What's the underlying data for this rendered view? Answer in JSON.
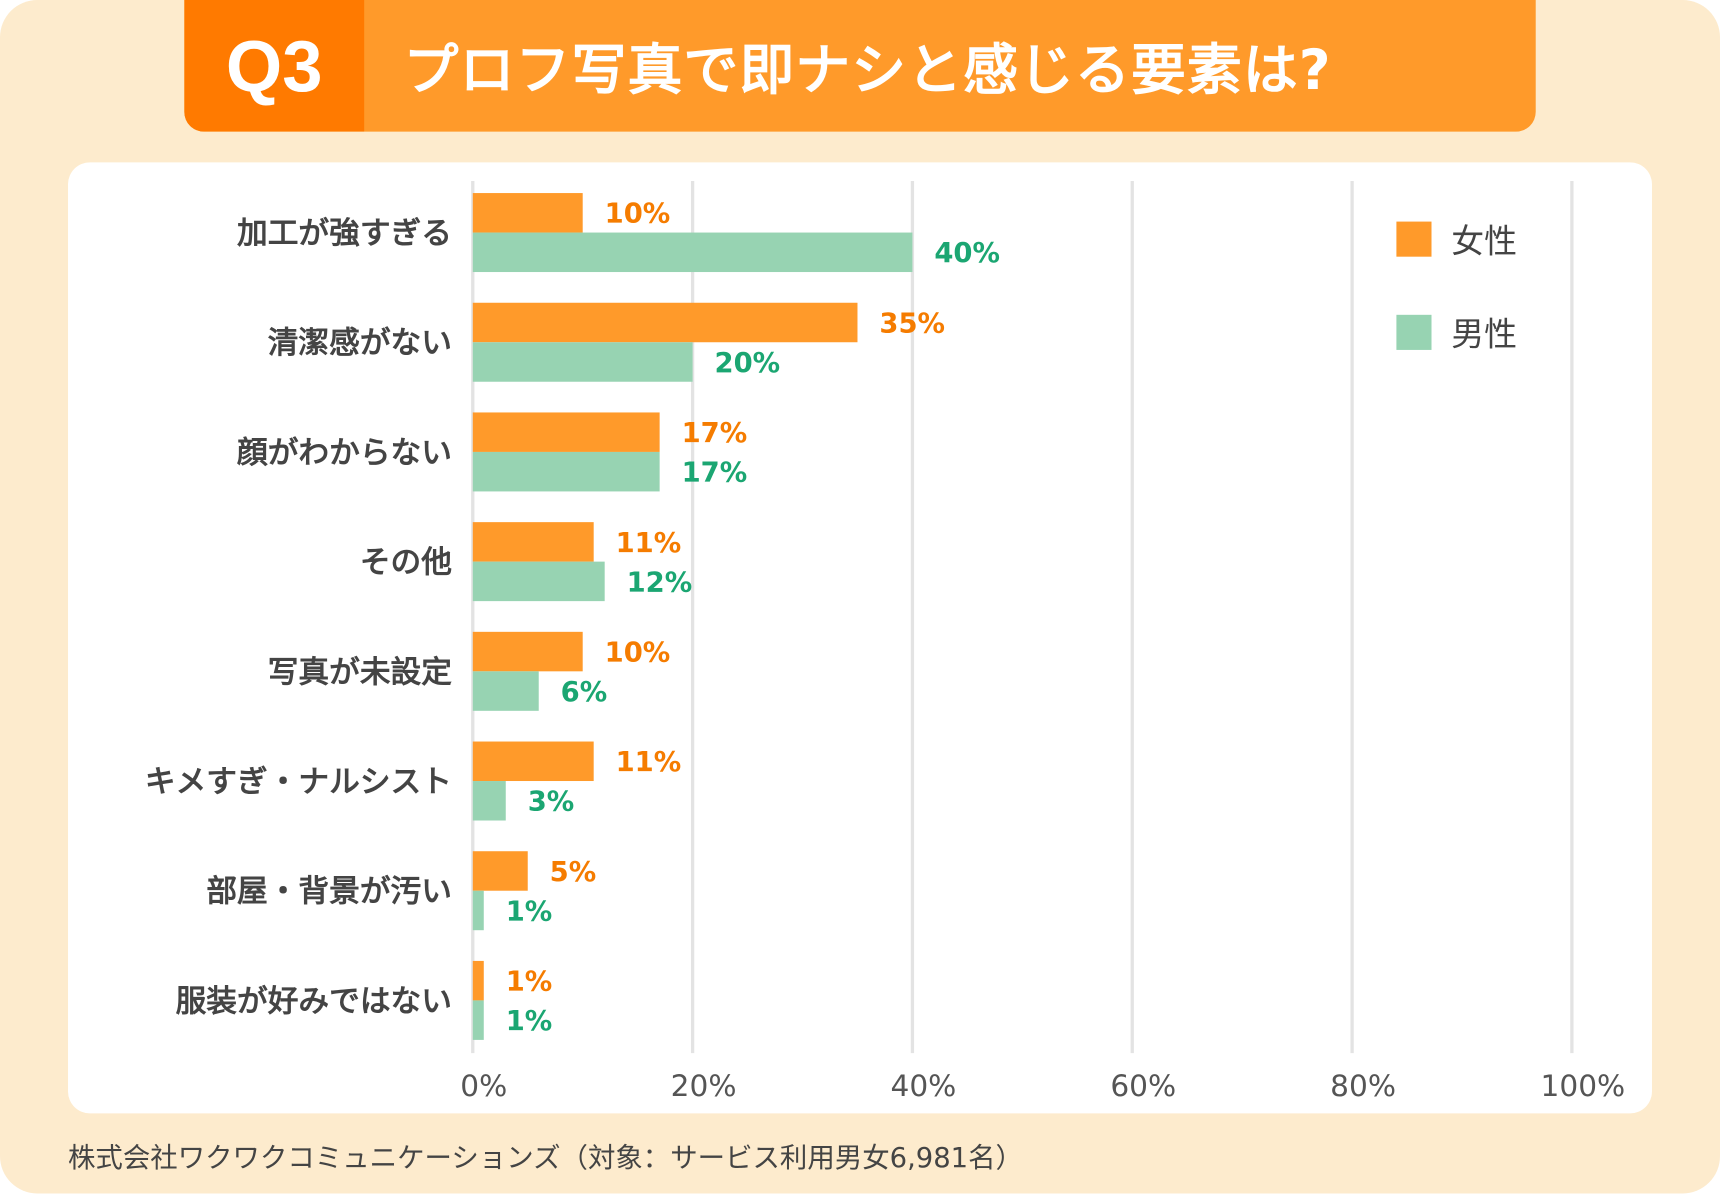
{
  "title": {
    "badge": "Q3",
    "text": "プロフ写真で即ナシと感じる要素は?"
  },
  "chart_data": {
    "type": "bar",
    "orientation": "horizontal",
    "categories": [
      "加工が強すぎる",
      "清潔感がない",
      "顔がわからない",
      "その他",
      "写真が未設定",
      "キメすぎ・ナルシスト",
      "部屋・背景が汚い",
      "服装が好みではない"
    ],
    "series": [
      {
        "name": "女性",
        "color": "#FF9A2A",
        "label_color": "#F57C00",
        "values": [
          10,
          35,
          17,
          11,
          10,
          11,
          5,
          1
        ]
      },
      {
        "name": "男性",
        "color": "#97D3B2",
        "label_color": "#1BA672",
        "values": [
          40,
          20,
          17,
          12,
          6,
          3,
          1,
          1
        ]
      }
    ],
    "xlim": [
      0,
      100
    ],
    "xticks": [
      "0%",
      "20%",
      "40%",
      "60%",
      "80%",
      "100%"
    ],
    "grid": true,
    "legend": "top-right",
    "value_suffix": "%"
  },
  "footer": "株式会社ワクワクコミュニケーションズ（対象：サービス利用男女6,981名）"
}
